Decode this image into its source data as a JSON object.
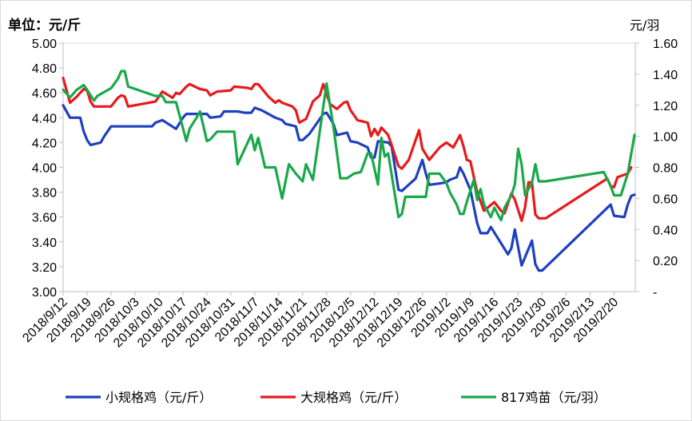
{
  "chart_data": {
    "type": "line",
    "left_axis_unit": "单位：元/斤",
    "right_axis_unit": "元/羽",
    "y_left": {
      "min": 3.0,
      "max": 5.0,
      "step": 0.2,
      "tick_labels": [
        "3.00",
        "3.20",
        "3.40",
        "3.60",
        "3.80",
        "4.00",
        "4.20",
        "4.40",
        "4.60",
        "4.80",
        "5.00"
      ]
    },
    "y_right": {
      "min": 0,
      "max": 1.6,
      "step": 0.2,
      "tick_labels": [
        "-",
        "0.20",
        "0.40",
        "0.60",
        "0.80",
        "1.00",
        "1.20",
        "1.40",
        "1.60"
      ]
    },
    "x_start": "2018/9/12",
    "x_end": "2019/2/25",
    "x_tick_labels": [
      "2018/9/12",
      "2018/9/19",
      "2018/9/26",
      "2018/10/3",
      "2018/10/10",
      "2018/10/17",
      "2018/10/24",
      "2018/10/31",
      "2018/11/7",
      "2018/11/14",
      "2018/11/21",
      "2018/11/28",
      "2018/12/5",
      "2018/12/12",
      "2018/12/19",
      "2018/12/26",
      "2019/1/2",
      "2019/1/9",
      "2019/1/16",
      "2019/1/23",
      "2019/1/30",
      "2019/2/6",
      "2019/2/13",
      "2019/2/20"
    ],
    "grid": false,
    "legend_position": "bottom",
    "series": [
      {
        "name": "小规格鸡（元/斤）",
        "color": "#1f3fbf",
        "axis": "left",
        "points": [
          [
            "2018/9/12",
            4.5
          ],
          [
            "2018/9/14",
            4.4
          ],
          [
            "2018/9/17",
            4.4
          ],
          [
            "2018/9/18",
            4.29
          ],
          [
            "2018/9/19",
            4.22
          ],
          [
            "2018/9/20",
            4.18
          ],
          [
            "2018/9/23",
            4.2
          ],
          [
            "2018/9/24",
            4.25
          ],
          [
            "2018/9/26",
            4.33
          ],
          [
            "2018/10/8",
            4.33
          ],
          [
            "2018/10/9",
            4.36
          ],
          [
            "2018/10/11",
            4.38
          ],
          [
            "2018/10/15",
            4.31
          ],
          [
            "2018/10/17",
            4.4
          ],
          [
            "2018/10/18",
            4.43
          ],
          [
            "2018/10/24",
            4.43
          ],
          [
            "2018/10/25",
            4.4
          ],
          [
            "2018/10/28",
            4.41
          ],
          [
            "2018/10/29",
            4.45
          ],
          [
            "2018/11/2",
            4.45
          ],
          [
            "2018/11/4",
            4.44
          ],
          [
            "2018/11/6",
            4.44
          ],
          [
            "2018/11/7",
            4.48
          ],
          [
            "2018/11/9",
            4.46
          ],
          [
            "2018/11/13",
            4.4
          ],
          [
            "2018/11/15",
            4.38
          ],
          [
            "2018/11/16",
            4.35
          ],
          [
            "2018/11/19",
            4.33
          ],
          [
            "2018/11/20",
            4.22
          ],
          [
            "2018/11/21",
            4.22
          ],
          [
            "2018/11/23",
            4.27
          ],
          [
            "2018/11/27",
            4.43
          ],
          [
            "2018/11/28",
            4.44
          ],
          [
            "2018/11/30",
            4.35
          ],
          [
            "2018/12/1",
            4.26
          ],
          [
            "2018/12/4",
            4.28
          ],
          [
            "2018/12/5",
            4.21
          ],
          [
            "2018/12/7",
            4.2
          ],
          [
            "2018/12/10",
            4.16
          ],
          [
            "2018/12/11",
            4.08
          ],
          [
            "2018/12/12",
            4.08
          ],
          [
            "2018/12/13",
            4.21
          ],
          [
            "2018/12/16",
            4.2
          ],
          [
            "2018/12/17",
            4.17
          ],
          [
            "2018/12/19",
            3.82
          ],
          [
            "2018/12/20",
            3.81
          ],
          [
            "2018/12/24",
            3.91
          ],
          [
            "2018/12/26",
            4.06
          ],
          [
            "2018/12/27",
            3.95
          ],
          [
            "2018/12/28",
            3.86
          ],
          [
            "2018/12/31",
            3.87
          ],
          [
            "2019/1/2",
            3.88
          ],
          [
            "2019/1/3",
            3.9
          ],
          [
            "2019/1/5",
            3.92
          ],
          [
            "2019/1/6",
            4.0
          ],
          [
            "2019/1/7",
            3.95
          ],
          [
            "2019/1/9",
            3.82
          ],
          [
            "2019/1/11",
            3.55
          ],
          [
            "2019/1/12",
            3.47
          ],
          [
            "2019/1/14",
            3.47
          ],
          [
            "2019/1/15",
            3.52
          ],
          [
            "2019/1/20",
            3.3
          ],
          [
            "2019/1/21",
            3.35
          ],
          [
            "2019/1/22",
            3.5
          ],
          [
            "2019/1/24",
            3.21
          ],
          [
            "2019/1/27",
            3.41
          ],
          [
            "2019/1/28",
            3.22
          ],
          [
            "2019/1/29",
            3.17
          ],
          [
            "2019/1/30",
            3.17
          ],
          [
            "2019/2/19",
            3.7
          ],
          [
            "2019/2/20",
            3.61
          ],
          [
            "2019/2/23",
            3.6
          ],
          [
            "2019/2/24",
            3.7
          ],
          [
            "2019/2/25",
            3.77
          ],
          [
            "2019/2/26",
            3.78
          ]
        ]
      },
      {
        "name": "大规格鸡（元/斤）",
        "color": "#e8191b",
        "axis": "left",
        "points": [
          [
            "2018/9/12",
            4.72
          ],
          [
            "2018/9/14",
            4.52
          ],
          [
            "2018/9/16",
            4.57
          ],
          [
            "2018/9/18",
            4.63
          ],
          [
            "2018/9/19",
            4.62
          ],
          [
            "2018/9/20",
            4.53
          ],
          [
            "2018/9/21",
            4.49
          ],
          [
            "2018/9/26",
            4.49
          ],
          [
            "2018/9/28",
            4.56
          ],
          [
            "2018/9/29",
            4.58
          ],
          [
            "2018/9/30",
            4.57
          ],
          [
            "2018/10/1",
            4.49
          ],
          [
            "2018/10/9",
            4.53
          ],
          [
            "2018/10/11",
            4.61
          ],
          [
            "2018/10/14",
            4.56
          ],
          [
            "2018/10/15",
            4.6
          ],
          [
            "2018/10/16",
            4.59
          ],
          [
            "2018/10/18",
            4.65
          ],
          [
            "2018/10/19",
            4.67
          ],
          [
            "2018/10/22",
            4.63
          ],
          [
            "2018/10/24",
            4.62
          ],
          [
            "2018/10/25",
            4.58
          ],
          [
            "2018/10/27",
            4.61
          ],
          [
            "2018/10/31",
            4.62
          ],
          [
            "2018/11/1",
            4.65
          ],
          [
            "2018/11/5",
            4.64
          ],
          [
            "2018/11/6",
            4.63
          ],
          [
            "2018/11/7",
            4.67
          ],
          [
            "2018/11/8",
            4.67
          ],
          [
            "2018/11/11",
            4.57
          ],
          [
            "2018/11/13",
            4.52
          ],
          [
            "2018/11/14",
            4.54
          ],
          [
            "2018/11/15",
            4.52
          ],
          [
            "2018/11/18",
            4.49
          ],
          [
            "2018/11/19",
            4.46
          ],
          [
            "2018/11/20",
            4.36
          ],
          [
            "2018/11/22",
            4.39
          ],
          [
            "2018/11/24",
            4.53
          ],
          [
            "2018/11/26",
            4.58
          ],
          [
            "2018/11/27",
            4.67
          ],
          [
            "2018/11/29",
            4.51
          ],
          [
            "2018/12/1",
            4.47
          ],
          [
            "2018/12/3",
            4.52
          ],
          [
            "2018/12/4",
            4.53
          ],
          [
            "2018/12/5",
            4.46
          ],
          [
            "2018/12/7",
            4.38
          ],
          [
            "2018/12/10",
            4.36
          ],
          [
            "2018/12/11",
            4.25
          ],
          [
            "2018/12/12",
            4.31
          ],
          [
            "2018/12/13",
            4.26
          ],
          [
            "2018/12/14",
            4.32
          ],
          [
            "2018/12/16",
            4.26
          ],
          [
            "2018/12/17",
            4.18
          ],
          [
            "2018/12/19",
            4.01
          ],
          [
            "2018/12/20",
            3.99
          ],
          [
            "2018/12/22",
            4.06
          ],
          [
            "2018/12/25",
            4.3
          ],
          [
            "2018/12/26",
            4.15
          ],
          [
            "2018/12/28",
            4.06
          ],
          [
            "2018/12/31",
            4.16
          ],
          [
            "2019/1/2",
            4.2
          ],
          [
            "2019/1/4",
            4.16
          ],
          [
            "2019/1/6",
            4.26
          ],
          [
            "2019/1/7",
            4.17
          ],
          [
            "2019/1/8",
            4.06
          ],
          [
            "2019/1/9",
            4.05
          ],
          [
            "2019/1/11",
            3.8
          ],
          [
            "2019/1/13",
            3.65
          ],
          [
            "2019/1/16",
            3.72
          ],
          [
            "2019/1/18",
            3.65
          ],
          [
            "2019/1/19",
            3.63
          ],
          [
            "2019/1/21",
            3.79
          ],
          [
            "2019/1/22",
            3.74
          ],
          [
            "2019/1/24",
            3.57
          ],
          [
            "2019/1/25",
            3.68
          ],
          [
            "2019/1/26",
            3.88
          ],
          [
            "2019/1/27",
            3.88
          ],
          [
            "2019/1/28",
            3.62
          ],
          [
            "2019/1/29",
            3.59
          ],
          [
            "2019/1/31",
            3.59
          ],
          [
            "2019/2/18",
            3.91
          ],
          [
            "2019/2/19",
            3.85
          ],
          [
            "2019/2/20",
            3.84
          ],
          [
            "2019/2/21",
            3.92
          ],
          [
            "2019/2/24",
            3.95
          ],
          [
            "2019/2/25",
            4.0
          ]
        ]
      },
      {
        "name": "817鸡苗（元/羽）",
        "color": "#1aa84a",
        "axis": "right",
        "points": [
          [
            "2018/9/12",
            1.3
          ],
          [
            "2018/9/14",
            1.25
          ],
          [
            "2018/9/16",
            1.3
          ],
          [
            "2018/9/18",
            1.33
          ],
          [
            "2018/9/19",
            1.3
          ],
          [
            "2018/9/21",
            1.23
          ],
          [
            "2018/9/22",
            1.26
          ],
          [
            "2018/9/26",
            1.31
          ],
          [
            "2018/9/28",
            1.37
          ],
          [
            "2018/9/29",
            1.42
          ],
          [
            "2018/9/30",
            1.42
          ],
          [
            "2018/10/1",
            1.32
          ],
          [
            "2018/10/9",
            1.26
          ],
          [
            "2018/10/11",
            1.26
          ],
          [
            "2018/10/12",
            1.22
          ],
          [
            "2018/10/15",
            1.22
          ],
          [
            "2018/10/18",
            0.97
          ],
          [
            "2018/10/19",
            1.05
          ],
          [
            "2018/10/21",
            1.12
          ],
          [
            "2018/10/22",
            1.16
          ],
          [
            "2018/10/24",
            0.97
          ],
          [
            "2018/10/25",
            0.98
          ],
          [
            "2018/10/27",
            1.03
          ],
          [
            "2018/11/1",
            1.03
          ],
          [
            "2018/11/2",
            0.82
          ],
          [
            "2018/11/6",
            1.01
          ],
          [
            "2018/11/7",
            0.91
          ],
          [
            "2018/11/8",
            0.99
          ],
          [
            "2018/11/10",
            0.8
          ],
          [
            "2018/11/13",
            0.8
          ],
          [
            "2018/11/15",
            0.6
          ],
          [
            "2018/11/17",
            0.82
          ],
          [
            "2018/11/19",
            0.76
          ],
          [
            "2018/11/21",
            0.71
          ],
          [
            "2018/11/22",
            0.82
          ],
          [
            "2018/11/24",
            0.72
          ],
          [
            "2018/11/28",
            1.34
          ],
          [
            "2018/11/30",
            1.06
          ],
          [
            "2018/12/2",
            0.73
          ],
          [
            "2018/12/4",
            0.73
          ],
          [
            "2018/12/6",
            0.76
          ],
          [
            "2018/12/8",
            0.77
          ],
          [
            "2018/12/10",
            0.89
          ],
          [
            "2018/12/11",
            0.89
          ],
          [
            "2018/12/13",
            0.69
          ],
          [
            "2018/12/14",
            0.99
          ],
          [
            "2018/12/15",
            0.87
          ],
          [
            "2018/12/16",
            0.89
          ],
          [
            "2018/12/19",
            0.48
          ],
          [
            "2018/12/20",
            0.5
          ],
          [
            "2018/12/21",
            0.61
          ],
          [
            "2018/12/27",
            0.61
          ],
          [
            "2018/12/28",
            0.76
          ],
          [
            "2018/12/31",
            0.76
          ],
          [
            "2019/1/2",
            0.7
          ],
          [
            "2019/1/3",
            0.64
          ],
          [
            "2019/1/5",
            0.56
          ],
          [
            "2019/1/6",
            0.5
          ],
          [
            "2019/1/7",
            0.5
          ],
          [
            "2019/1/8",
            0.58
          ],
          [
            "2019/1/10",
            0.72
          ],
          [
            "2019/1/11",
            0.59
          ],
          [
            "2019/1/12",
            0.66
          ],
          [
            "2019/1/13",
            0.56
          ],
          [
            "2019/1/15",
            0.48
          ],
          [
            "2019/1/16",
            0.54
          ],
          [
            "2019/1/18",
            0.46
          ],
          [
            "2019/1/19",
            0.54
          ],
          [
            "2019/1/21",
            0.62
          ],
          [
            "2019/1/22",
            0.69
          ],
          [
            "2019/1/23",
            0.92
          ],
          [
            "2019/1/24",
            0.82
          ],
          [
            "2019/1/25",
            0.62
          ],
          [
            "2019/1/27",
            0.7
          ],
          [
            "2019/1/28",
            0.82
          ],
          [
            "2019/1/29",
            0.71
          ],
          [
            "2019/1/31",
            0.71
          ],
          [
            "2019/2/17",
            0.77
          ],
          [
            "2019/2/19",
            0.68
          ],
          [
            "2019/2/20",
            0.62
          ],
          [
            "2019/2/22",
            0.62
          ],
          [
            "2019/2/23",
            0.69
          ],
          [
            "2019/2/24",
            0.76
          ],
          [
            "2019/2/26",
            1.01
          ]
        ]
      }
    ]
  }
}
